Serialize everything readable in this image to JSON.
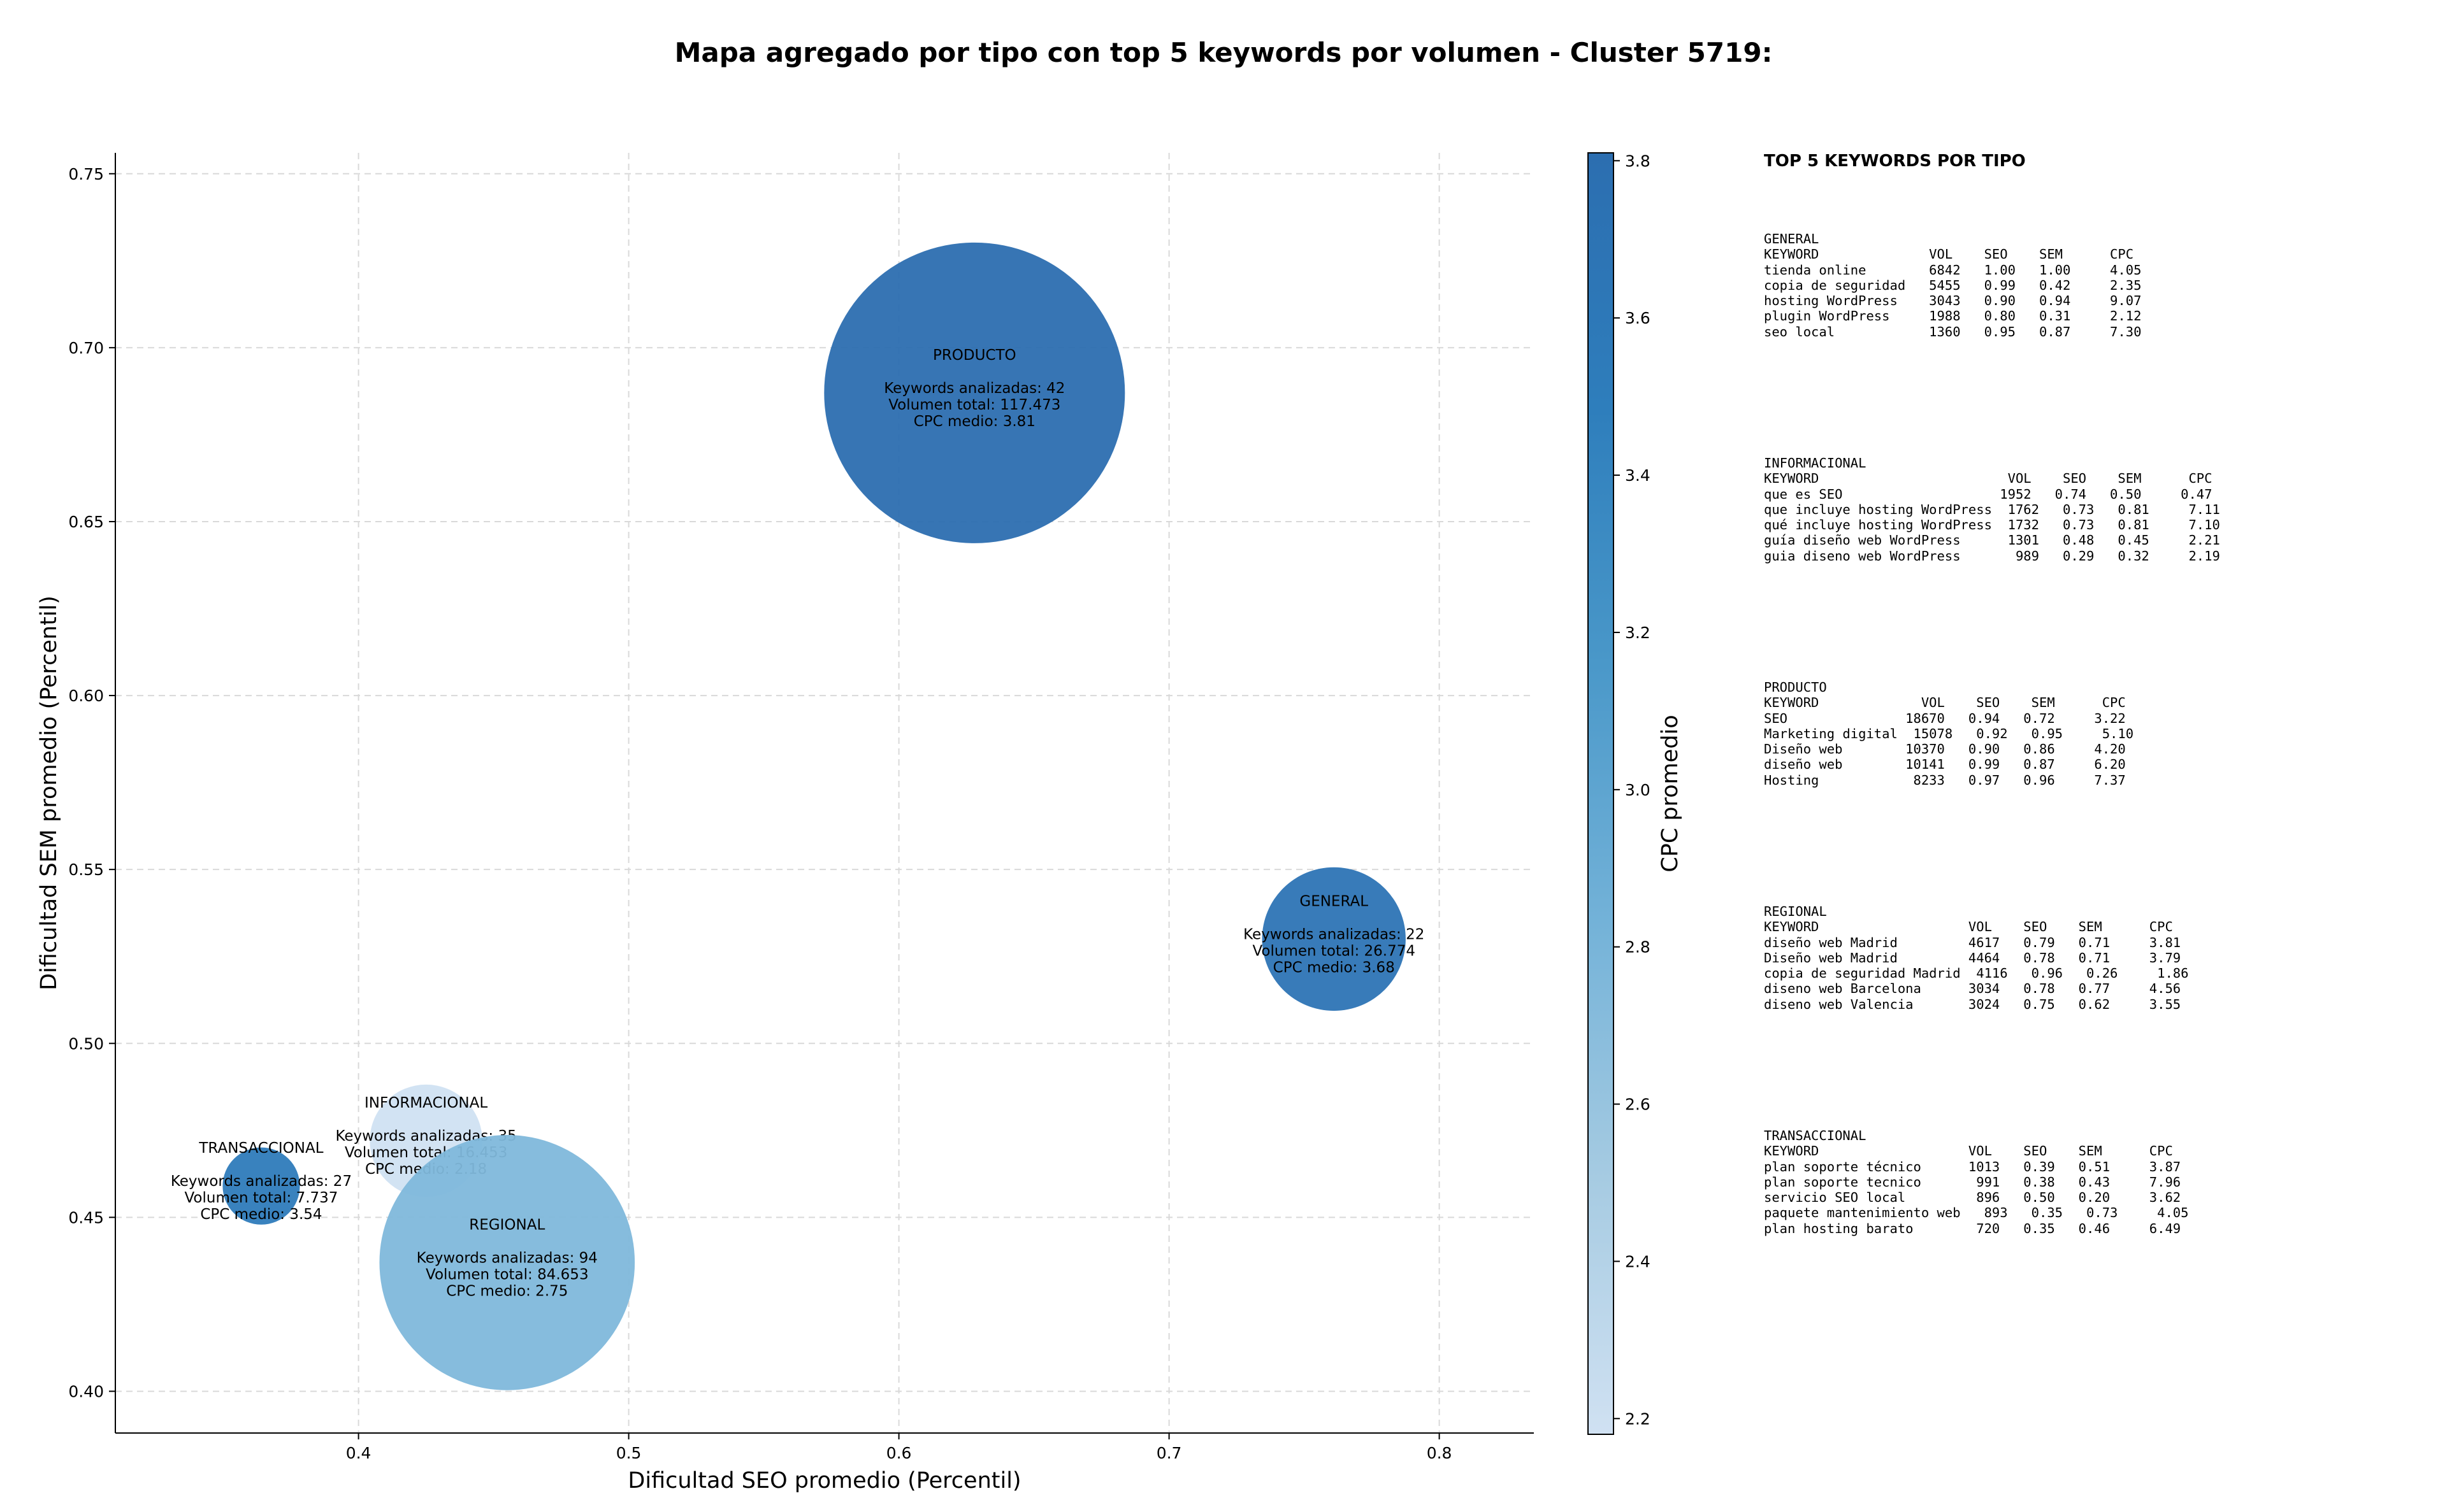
{
  "chart_data": {
    "type": "scatter",
    "title": "Mapa agregado por tipo con top 5 keywords por volumen - Cluster 5719:",
    "xlabel": "Dificultad SEO promedio (Percentil)",
    "ylabel": "Dificultad SEM promedio (Percentil)",
    "xlim": [
      0.31,
      0.835
    ],
    "ylim": [
      0.388,
      0.756
    ],
    "xticks": [
      0.4,
      0.5,
      0.6,
      0.7,
      0.8
    ],
    "xtick_labels": [
      "0.4",
      "0.5",
      "0.6",
      "0.7",
      "0.8"
    ],
    "yticks": [
      0.4,
      0.45,
      0.5,
      0.55,
      0.6,
      0.65,
      0.7,
      0.75
    ],
    "ytick_labels": [
      "0.40",
      "0.45",
      "0.50",
      "0.55",
      "0.60",
      "0.65",
      "0.70",
      "0.75"
    ],
    "grid": true,
    "colorbar": {
      "label": "CPC promedio",
      "min": 2.18,
      "max": 3.81,
      "ticks": [
        2.2,
        2.4,
        2.6,
        2.8,
        3.0,
        3.2,
        3.4,
        3.6,
        3.8
      ],
      "tick_labels": [
        "2.2",
        "2.4",
        "2.6",
        "2.8",
        "3.0",
        "3.2",
        "3.4",
        "3.6",
        "3.8"
      ],
      "colormap": [
        "#d0e1f2",
        "#a6cbe2",
        "#73b2d8",
        "#4a98c9",
        "#2e7ebc",
        "#2c6eb0"
      ]
    },
    "bubbles": [
      {
        "name": "INFORMACIONAL",
        "x": 0.425,
        "y": 0.472,
        "volume": 16453,
        "cpc": 2.18,
        "lines": [
          "Keywords analizadas: 35",
          "Volumen total: 16.453",
          "CPC medio: 2.18"
        ]
      },
      {
        "name": "REGIONAL",
        "x": 0.455,
        "y": 0.437,
        "volume": 84653,
        "cpc": 2.75,
        "lines": [
          "Keywords analizadas: 94",
          "Volumen total: 84.653",
          "CPC medio: 2.75"
        ]
      },
      {
        "name": "TRANSACCIONAL",
        "x": 0.364,
        "y": 0.459,
        "volume": 7737,
        "cpc": 3.54,
        "lines": [
          "Keywords analizadas: 27",
          "Volumen total: 7.737",
          "CPC medio: 3.54"
        ]
      },
      {
        "name": "GENERAL",
        "x": 0.761,
        "y": 0.53,
        "volume": 26774,
        "cpc": 3.68,
        "lines": [
          "Keywords analizadas: 22",
          "Volumen total: 26.774",
          "CPC medio: 3.68"
        ]
      },
      {
        "name": "PRODUCTO",
        "x": 0.628,
        "y": 0.687,
        "volume": 117473,
        "cpc": 3.81,
        "lines": [
          "Keywords analizadas: 42",
          "Volumen total: 117.473",
          "CPC medio: 3.81"
        ]
      }
    ]
  },
  "keywords_panel": {
    "title": "TOP 5 KEYWORDS POR TIPO",
    "groups": [
      {
        "name": "GENERAL",
        "header": "KEYWORD              VOL    SEO    SEM      CPC",
        "rows": [
          "tienda online        6842   1.00   1.00     4.05",
          "copia de seguridad   5455   0.99   0.42     2.35",
          "hosting WordPress    3043   0.90   0.94     9.07",
          "plugin WordPress     1988   0.80   0.31     2.12",
          "seo local            1360   0.95   0.87     7.30"
        ]
      },
      {
        "name": "INFORMACIONAL",
        "header": "KEYWORD                        VOL    SEO    SEM      CPC",
        "rows": [
          "que es SEO                    1952   0.74   0.50     0.47",
          "que incluye hosting WordPress  1762   0.73   0.81     7.11",
          "qué incluye hosting WordPress  1732   0.73   0.81     7.10",
          "guía diseño web WordPress      1301   0.48   0.45     2.21",
          "guia diseno web WordPress       989   0.29   0.32     2.19"
        ]
      },
      {
        "name": "PRODUCTO",
        "header": "KEYWORD             VOL    SEO    SEM      CPC",
        "rows": [
          "SEO               18670   0.94   0.72     3.22",
          "Marketing digital  15078   0.92   0.95     5.10",
          "Diseño web        10370   0.90   0.86     4.20",
          "diseño web        10141   0.99   0.87     6.20",
          "Hosting            8233   0.97   0.96     7.37"
        ]
      },
      {
        "name": "REGIONAL",
        "header": "KEYWORD                   VOL    SEO    SEM      CPC",
        "rows": [
          "diseño web Madrid         4617   0.79   0.71     3.81",
          "Diseño web Madrid         4464   0.78   0.71     3.79",
          "copia de seguridad Madrid  4116   0.96   0.26     1.86",
          "diseno web Barcelona      3034   0.78   0.77     4.56",
          "diseno web Valencia       3024   0.75   0.62     3.55"
        ]
      },
      {
        "name": "TRANSACCIONAL",
        "header": "KEYWORD                   VOL    SEO    SEM      CPC",
        "rows": [
          "plan soporte técnico      1013   0.39   0.51     3.87",
          "plan soporte tecnico       991   0.38   0.43     7.96",
          "servicio SEO local         896   0.50   0.20     3.62",
          "paquete mantenimiento web   893   0.35   0.73     4.05",
          "plan hosting barato        720   0.35   0.46     6.49"
        ]
      }
    ]
  }
}
